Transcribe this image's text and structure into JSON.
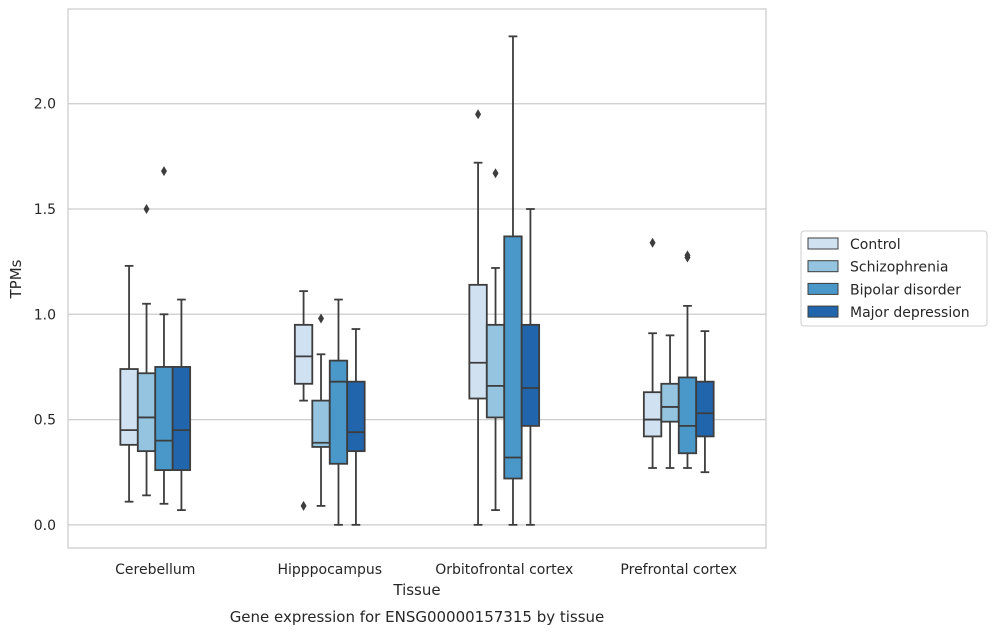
{
  "chart_data": {
    "type": "boxplot",
    "caption": "Gene expression for ENSG00000157315 by tissue",
    "xlabel": "Tissue",
    "ylabel": "TPMs",
    "ylim": [
      -0.11,
      2.45
    ],
    "yticks": [
      0.0,
      0.5,
      1.0,
      1.5,
      2.0
    ],
    "ytick_labels": [
      "0.0",
      "0.5",
      "1.0",
      "1.5",
      "2.0"
    ],
    "grid": true,
    "legend_position": "right",
    "categories": [
      "Cerebellum",
      "Hipppocampus",
      "Orbitofrontal cortex",
      "Prefrontal cortex"
    ],
    "series": [
      {
        "name": "Control",
        "color": "#d0e1f2",
        "boxes": [
          {
            "whisker_low": 0.11,
            "q1": 0.38,
            "median": 0.45,
            "q3": 0.74,
            "whisker_high": 1.23,
            "outliers": []
          },
          {
            "whisker_low": 0.59,
            "q1": 0.67,
            "median": 0.8,
            "q3": 0.95,
            "whisker_high": 1.11,
            "outliers": [
              0.09
            ]
          },
          {
            "whisker_low": 0.0,
            "q1": 0.6,
            "median": 0.77,
            "q3": 1.14,
            "whisker_high": 1.72,
            "outliers": [
              1.95
            ]
          },
          {
            "whisker_low": 0.27,
            "q1": 0.42,
            "median": 0.5,
            "q3": 0.63,
            "whisker_high": 0.91,
            "outliers": [
              1.34
            ]
          }
        ]
      },
      {
        "name": "Schizophrenia",
        "color": "#94c4df",
        "boxes": [
          {
            "whisker_low": 0.14,
            "q1": 0.35,
            "median": 0.51,
            "q3": 0.72,
            "whisker_high": 1.05,
            "outliers": [
              1.5
            ]
          },
          {
            "whisker_low": 0.09,
            "q1": 0.37,
            "median": 0.39,
            "q3": 0.59,
            "whisker_high": 0.81,
            "outliers": [
              0.98
            ]
          },
          {
            "whisker_low": 0.07,
            "q1": 0.51,
            "median": 0.66,
            "q3": 0.95,
            "whisker_high": 1.22,
            "outliers": [
              1.67
            ]
          },
          {
            "whisker_low": 0.27,
            "q1": 0.49,
            "median": 0.56,
            "q3": 0.67,
            "whisker_high": 0.9,
            "outliers": []
          }
        ]
      },
      {
        "name": "Bipolar disorder",
        "color": "#4a98c9",
        "boxes": [
          {
            "whisker_low": 0.1,
            "q1": 0.26,
            "median": 0.4,
            "q3": 0.75,
            "whisker_high": 1.0,
            "outliers": [
              1.68
            ]
          },
          {
            "whisker_low": 0.0,
            "q1": 0.29,
            "median": 0.68,
            "q3": 0.78,
            "whisker_high": 1.07,
            "outliers": []
          },
          {
            "whisker_low": 0.0,
            "q1": 0.22,
            "median": 0.32,
            "q3": 1.37,
            "whisker_high": 2.32,
            "outliers": []
          },
          {
            "whisker_low": 0.27,
            "q1": 0.34,
            "median": 0.47,
            "q3": 0.7,
            "whisker_high": 1.04,
            "outliers": [
              1.27,
              1.28
            ]
          }
        ]
      },
      {
        "name": "Major depression",
        "color": "#2166ac",
        "boxes": [
          {
            "whisker_low": 0.07,
            "q1": 0.26,
            "median": 0.45,
            "q3": 0.75,
            "whisker_high": 1.07,
            "outliers": []
          },
          {
            "whisker_low": 0.0,
            "q1": 0.35,
            "median": 0.44,
            "q3": 0.68,
            "whisker_high": 0.93,
            "outliers": []
          },
          {
            "whisker_low": 0.0,
            "q1": 0.47,
            "median": 0.65,
            "q3": 0.95,
            "whisker_high": 1.5,
            "outliers": []
          },
          {
            "whisker_low": 0.25,
            "q1": 0.42,
            "median": 0.53,
            "q3": 0.68,
            "whisker_high": 0.92,
            "outliers": []
          }
        ]
      }
    ]
  }
}
